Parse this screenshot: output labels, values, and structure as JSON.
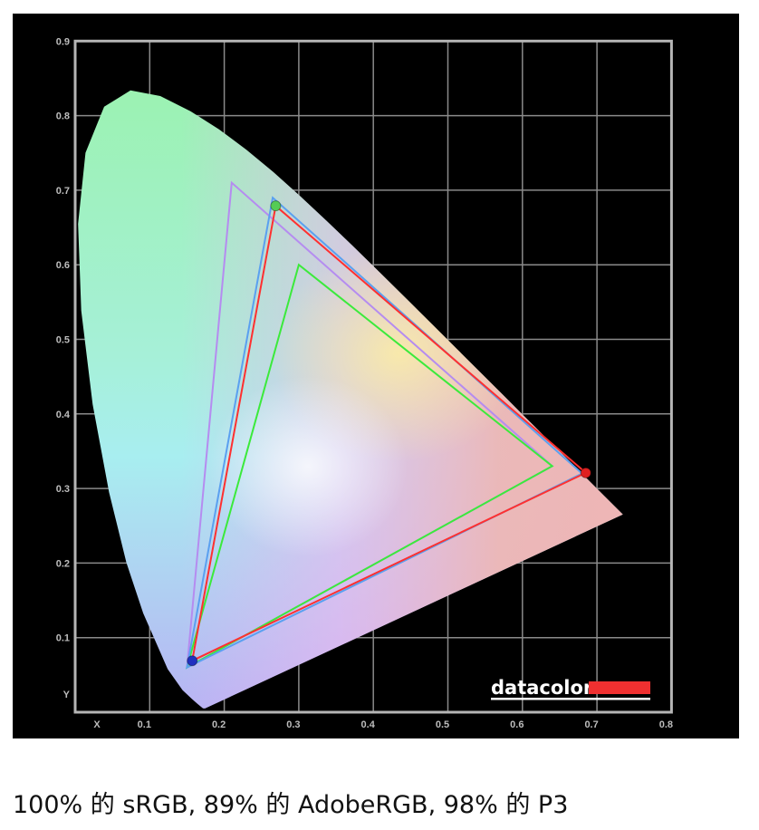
{
  "chart_data": {
    "type": "scatter",
    "title": "",
    "xlabel": "X",
    "ylabel": "Y",
    "xlim": [
      0,
      0.8
    ],
    "ylim": [
      0,
      0.9
    ],
    "grid": true,
    "x_ticks": [
      "0.1",
      "0.2",
      "0.3",
      "0.4",
      "0.5",
      "0.6",
      "0.7",
      "0.8"
    ],
    "y_ticks": [
      "0.1",
      "0.2",
      "0.3",
      "0.4",
      "0.5",
      "0.6",
      "0.7",
      "0.8",
      "0.9"
    ],
    "background": "#000000",
    "spectral_locus": [
      [
        0.1741,
        0.005
      ],
      [
        0.1714,
        0.0051
      ],
      [
        0.1644,
        0.0109
      ],
      [
        0.1566,
        0.0177
      ],
      [
        0.144,
        0.0297
      ],
      [
        0.1241,
        0.0578
      ],
      [
        0.0913,
        0.1327
      ],
      [
        0.0687,
        0.2007
      ],
      [
        0.0454,
        0.295
      ],
      [
        0.0235,
        0.4127
      ],
      [
        0.0082,
        0.5384
      ],
      [
        0.0039,
        0.6548
      ],
      [
        0.0139,
        0.7502
      ],
      [
        0.0389,
        0.812
      ],
      [
        0.0743,
        0.8338
      ],
      [
        0.1142,
        0.8262
      ],
      [
        0.1547,
        0.8059
      ],
      [
        0.1929,
        0.7816
      ],
      [
        0.2296,
        0.7543
      ],
      [
        0.2658,
        0.7243
      ],
      [
        0.3016,
        0.6923
      ],
      [
        0.3373,
        0.6589
      ],
      [
        0.3731,
        0.6245
      ],
      [
        0.4087,
        0.5896
      ],
      [
        0.4441,
        0.5547
      ],
      [
        0.4788,
        0.5202
      ],
      [
        0.5125,
        0.4866
      ],
      [
        0.5448,
        0.4544
      ],
      [
        0.5752,
        0.4242
      ],
      [
        0.6029,
        0.3965
      ],
      [
        0.627,
        0.3725
      ],
      [
        0.6482,
        0.3514
      ],
      [
        0.6658,
        0.334
      ],
      [
        0.6915,
        0.3083
      ],
      [
        0.7079,
        0.292
      ],
      [
        0.7347,
        0.2653
      ]
    ],
    "series": [
      {
        "color": "#b58cf0",
        "points": [
          [
            0.64,
            0.33
          ],
          [
            0.21,
            0.71
          ],
          [
            0.15,
            0.06
          ]
        ]
      },
      {
        "color": "#3bea3b",
        "points": [
          [
            0.64,
            0.33
          ],
          [
            0.3,
            0.6
          ],
          [
            0.15,
            0.06
          ]
        ]
      },
      {
        "color": "#5aa0f0",
        "points": [
          [
            0.68,
            0.32
          ],
          [
            0.265,
            0.69
          ],
          [
            0.15,
            0.06
          ]
        ]
      },
      {
        "color": "#ff3030",
        "points": [
          [
            0.685,
            0.321
          ],
          [
            0.269,
            0.679
          ],
          [
            0.157,
            0.069
          ]
        ]
      }
    ],
    "measured_primaries": [
      {
        "name": "red",
        "color": "#e02020",
        "x": 0.685,
        "y": 0.321
      },
      {
        "name": "green",
        "color": "#55cc55",
        "x": 0.269,
        "y": 0.679
      },
      {
        "name": "blue",
        "color": "#2030c0",
        "x": 0.157,
        "y": 0.069
      }
    ]
  },
  "logo": {
    "text": "datacolor",
    "accent": "#ef3030"
  },
  "caption": "100% 的 sRGB, 89% 的 AdobeRGB, 98% 的 P3"
}
